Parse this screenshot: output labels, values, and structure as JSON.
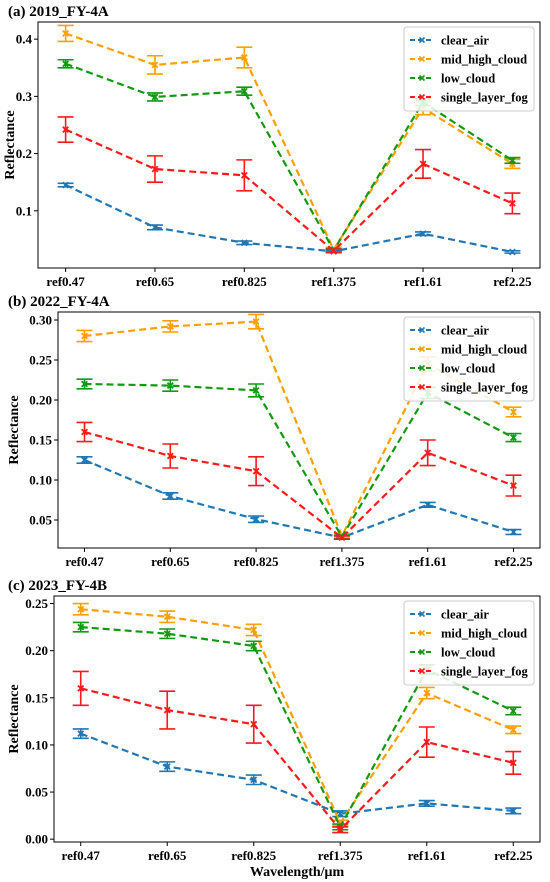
{
  "chart_data": [
    {
      "type": "line",
      "title": "(a) 2019_FY-4A",
      "xlabel": "",
      "ylabel": "Reflectance",
      "categories": [
        "ref0.47",
        "ref0.65",
        "ref0.825",
        "ref1.375",
        "ref1.61",
        "ref2.25"
      ],
      "ylim": [
        0.0,
        0.43
      ],
      "yticks": [
        "0.1",
        "0.2",
        "0.3",
        "0.4"
      ],
      "ytick_values": [
        0.1,
        0.2,
        0.3,
        0.4
      ],
      "legend_position": "top-right",
      "series": [
        {
          "name": "clear_air",
          "color": "#1f77b4",
          "values": [
            0.145,
            0.071,
            0.044,
            0.029,
            0.06,
            0.028
          ],
          "errors": [
            0.003,
            0.004,
            0.003,
            0.002,
            0.003,
            0.002
          ]
        },
        {
          "name": "mid_high_cloud",
          "color": "#ff9f00",
          "values": [
            0.41,
            0.355,
            0.368,
            0.032,
            0.28,
            0.182
          ],
          "errors": [
            0.014,
            0.016,
            0.018,
            0.004,
            0.012,
            0.008
          ]
        },
        {
          "name": "low_cloud",
          "color": "#119a11",
          "values": [
            0.357,
            0.299,
            0.309,
            0.031,
            0.29,
            0.188
          ],
          "errors": [
            0.007,
            0.007,
            0.007,
            0.003,
            0.006,
            0.005
          ]
        },
        {
          "name": "single_layer_fog",
          "color": "#ff1a1a",
          "values": [
            0.242,
            0.173,
            0.162,
            0.03,
            0.182,
            0.113
          ],
          "errors": [
            0.022,
            0.023,
            0.027,
            0.003,
            0.025,
            0.018
          ]
        }
      ]
    },
    {
      "type": "line",
      "title": "(b) 2022_FY-4A",
      "xlabel": "",
      "ylabel": "Reflectance",
      "categories": [
        "ref0.47",
        "ref0.65",
        "ref0.825",
        "ref1.375",
        "ref1.61",
        "ref2.25"
      ],
      "ylim": [
        0.015,
        0.31
      ],
      "yticks": [
        "0.05",
        "0.10",
        "0.15",
        "0.20",
        "0.25",
        "0.30"
      ],
      "ytick_values": [
        0.05,
        0.1,
        0.15,
        0.2,
        0.25,
        0.3
      ],
      "legend_position": "top-right",
      "series": [
        {
          "name": "clear_air",
          "color": "#1f77b4",
          "values": [
            0.125,
            0.08,
            0.051,
            0.028,
            0.069,
            0.035
          ],
          "errors": [
            0.004,
            0.004,
            0.004,
            0.002,
            0.003,
            0.003
          ]
        },
        {
          "name": "mid_high_cloud",
          "color": "#ff9f00",
          "values": [
            0.28,
            0.292,
            0.298,
            0.03,
            0.245,
            0.185
          ],
          "errors": [
            0.007,
            0.007,
            0.009,
            0.003,
            0.009,
            0.006
          ]
        },
        {
          "name": "low_cloud",
          "color": "#119a11",
          "values": [
            0.22,
            0.218,
            0.212,
            0.029,
            0.209,
            0.153
          ],
          "errors": [
            0.006,
            0.007,
            0.008,
            0.002,
            0.007,
            0.005
          ]
        },
        {
          "name": "single_layer_fog",
          "color": "#ff1a1a",
          "values": [
            0.16,
            0.13,
            0.111,
            0.028,
            0.134,
            0.093
          ],
          "errors": [
            0.012,
            0.015,
            0.018,
            0.002,
            0.016,
            0.013
          ]
        }
      ]
    },
    {
      "type": "line",
      "title": "(c) 2023_FY-4B",
      "xlabel": "Wavelength/μm",
      "ylabel": "Reflectance",
      "categories": [
        "ref0.47",
        "ref0.65",
        "ref0.825",
        "ref1.375",
        "ref1.61",
        "ref2.25"
      ],
      "ylim": [
        -0.003,
        0.258
      ],
      "yticks": [
        "0.00",
        "0.05",
        "0.10",
        "0.15",
        "0.20",
        "0.25"
      ],
      "ytick_values": [
        0.0,
        0.05,
        0.1,
        0.15,
        0.2,
        0.25
      ],
      "legend_position": "top-right",
      "series": [
        {
          "name": "clear_air",
          "color": "#1f77b4",
          "values": [
            0.112,
            0.077,
            0.063,
            0.027,
            0.038,
            0.03
          ],
          "errors": [
            0.005,
            0.005,
            0.005,
            0.003,
            0.003,
            0.003
          ]
        },
        {
          "name": "mid_high_cloud",
          "color": "#ff9f00",
          "values": [
            0.244,
            0.236,
            0.222,
            0.017,
            0.155,
            0.116
          ],
          "errors": [
            0.006,
            0.006,
            0.006,
            0.003,
            0.006,
            0.004
          ]
        },
        {
          "name": "low_cloud",
          "color": "#119a11",
          "values": [
            0.225,
            0.218,
            0.205,
            0.013,
            0.18,
            0.136
          ],
          "errors": [
            0.005,
            0.005,
            0.005,
            0.003,
            0.005,
            0.004
          ]
        },
        {
          "name": "single_layer_fog",
          "color": "#ff1a1a",
          "values": [
            0.16,
            0.137,
            0.122,
            0.01,
            0.103,
            0.081
          ],
          "errors": [
            0.018,
            0.02,
            0.02,
            0.003,
            0.016,
            0.012
          ]
        }
      ]
    }
  ]
}
